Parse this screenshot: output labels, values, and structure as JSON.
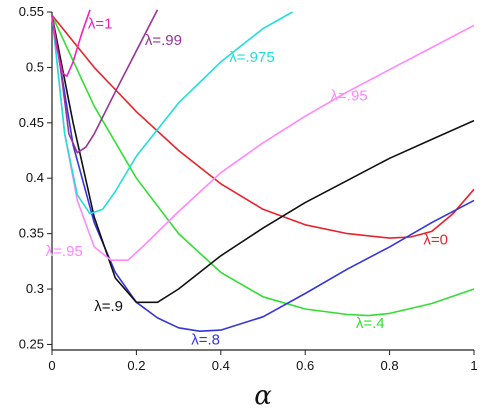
{
  "chart_data": {
    "type": "line",
    "title": "",
    "xlabel": "α",
    "ylabel": "",
    "xlim": [
      0,
      1
    ],
    "ylim": [
      0.245,
      0.55
    ],
    "grid": false,
    "legend": "none",
    "x_ticks": [
      0,
      0.2,
      0.4,
      0.6,
      0.8,
      1
    ],
    "x_tick_labels": [
      "0",
      "0.2",
      "0.4",
      "0.6",
      "0.8",
      "1"
    ],
    "y_ticks": [
      0.25,
      0.3,
      0.35,
      0.4,
      0.45,
      0.5,
      0.55
    ],
    "y_tick_labels": [
      "0.25",
      "0.3",
      "0.35",
      "0.4",
      "0.45",
      "0.5",
      "0.55"
    ],
    "series": [
      {
        "label": "λ=0",
        "color": "#e8232a",
        "points": [
          [
            0,
            0.547
          ],
          [
            0.1,
            0.5
          ],
          [
            0.2,
            0.46
          ],
          [
            0.3,
            0.425
          ],
          [
            0.4,
            0.395
          ],
          [
            0.5,
            0.372
          ],
          [
            0.6,
            0.358
          ],
          [
            0.7,
            0.35
          ],
          [
            0.8,
            0.346
          ],
          [
            0.85,
            0.347
          ],
          [
            0.9,
            0.352
          ],
          [
            0.95,
            0.368
          ],
          [
            1,
            0.39
          ]
        ],
        "label_pos": [
          0.88,
          0.34
        ]
      },
      {
        "label": "λ=.4",
        "color": "#33dd33",
        "points": [
          [
            0,
            0.547
          ],
          [
            0.1,
            0.465
          ],
          [
            0.2,
            0.4
          ],
          [
            0.3,
            0.35
          ],
          [
            0.4,
            0.315
          ],
          [
            0.5,
            0.293
          ],
          [
            0.6,
            0.282
          ],
          [
            0.7,
            0.277
          ],
          [
            0.75,
            0.276
          ],
          [
            0.8,
            0.278
          ],
          [
            0.9,
            0.287
          ],
          [
            1,
            0.3
          ]
        ],
        "label_pos": [
          0.72,
          0.265
        ]
      },
      {
        "label": "λ=.8",
        "color": "#3535dd",
        "points": [
          [
            0,
            0.547
          ],
          [
            0.05,
            0.43
          ],
          [
            0.1,
            0.36
          ],
          [
            0.15,
            0.315
          ],
          [
            0.2,
            0.288
          ],
          [
            0.25,
            0.274
          ],
          [
            0.3,
            0.265
          ],
          [
            0.35,
            0.262
          ],
          [
            0.4,
            0.263
          ],
          [
            0.5,
            0.275
          ],
          [
            0.6,
            0.296
          ],
          [
            0.7,
            0.318
          ],
          [
            0.8,
            0.338
          ],
          [
            0.9,
            0.36
          ],
          [
            1,
            0.38
          ]
        ],
        "label_pos": [
          0.33,
          0.25
        ]
      },
      {
        "label": "λ=.9",
        "color": "#111111",
        "points": [
          [
            0,
            0.547
          ],
          [
            0.05,
            0.45
          ],
          [
            0.1,
            0.365
          ],
          [
            0.15,
            0.31
          ],
          [
            0.2,
            0.288
          ],
          [
            0.25,
            0.288
          ],
          [
            0.3,
            0.3
          ],
          [
            0.4,
            0.33
          ],
          [
            0.5,
            0.355
          ],
          [
            0.6,
            0.378
          ],
          [
            0.7,
            0.398
          ],
          [
            0.8,
            0.418
          ],
          [
            0.9,
            0.435
          ],
          [
            1,
            0.452
          ]
        ],
        "label_pos": [
          0.1,
          0.28
        ]
      },
      {
        "label": "λ=.95",
        "color": "#ff88ff",
        "points": [
          [
            0,
            0.547
          ],
          [
            0.03,
            0.44
          ],
          [
            0.06,
            0.38
          ],
          [
            0.1,
            0.338
          ],
          [
            0.14,
            0.326
          ],
          [
            0.18,
            0.326
          ],
          [
            0.22,
            0.34
          ],
          [
            0.3,
            0.37
          ],
          [
            0.4,
            0.405
          ],
          [
            0.5,
            0.432
          ],
          [
            0.6,
            0.456
          ],
          [
            0.7,
            0.478
          ],
          [
            0.8,
            0.498
          ],
          [
            0.9,
            0.518
          ],
          [
            1,
            0.538
          ]
        ],
        "label_pos": [
          0.66,
          0.47
        ],
        "label2": "λ=.95",
        "label2_pos": [
          -0.015,
          0.33
        ]
      },
      {
        "label": "λ=.975",
        "color": "#22dddd",
        "points": [
          [
            0,
            0.547
          ],
          [
            0.03,
            0.44
          ],
          [
            0.06,
            0.385
          ],
          [
            0.09,
            0.368
          ],
          [
            0.12,
            0.372
          ],
          [
            0.15,
            0.388
          ],
          [
            0.2,
            0.42
          ],
          [
            0.3,
            0.468
          ],
          [
            0.4,
            0.505
          ],
          [
            0.5,
            0.535
          ],
          [
            0.57,
            0.55
          ]
        ],
        "label_pos": [
          0.42,
          0.505
        ]
      },
      {
        "label": "λ=.99",
        "color": "#993399",
        "points": [
          [
            0,
            0.547
          ],
          [
            0.02,
            0.5
          ],
          [
            0.04,
            0.44
          ],
          [
            0.06,
            0.423
          ],
          [
            0.08,
            0.428
          ],
          [
            0.1,
            0.44
          ],
          [
            0.15,
            0.478
          ],
          [
            0.2,
            0.515
          ],
          [
            0.25,
            0.552
          ]
        ],
        "label_pos": [
          0.22,
          0.52
        ]
      },
      {
        "label": "λ=1",
        "color": "#ee22bb",
        "points": [
          [
            0,
            0.547
          ],
          [
            0.01,
            0.52
          ],
          [
            0.025,
            0.495
          ],
          [
            0.035,
            0.492
          ],
          [
            0.05,
            0.505
          ],
          [
            0.07,
            0.53
          ],
          [
            0.09,
            0.552
          ]
        ],
        "label_pos": [
          0.085,
          0.535
        ]
      }
    ]
  }
}
